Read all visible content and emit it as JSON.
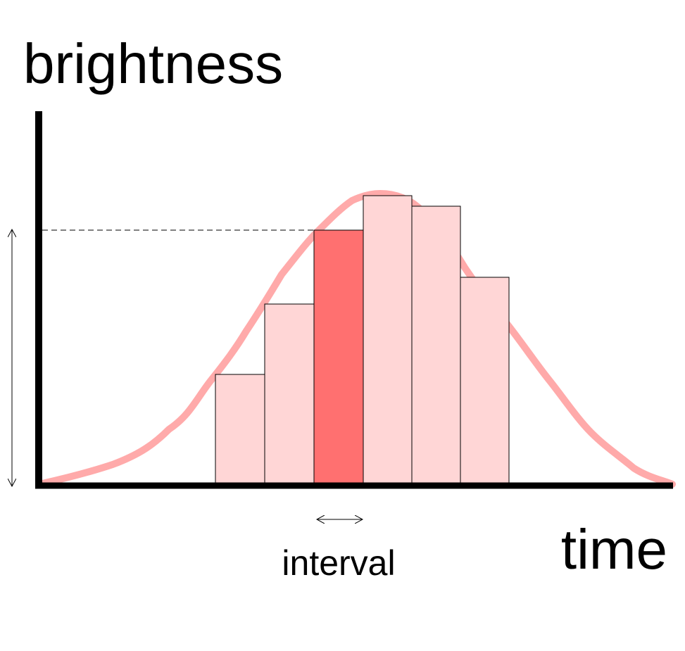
{
  "labels": {
    "y_axis": "brightness",
    "x_axis": "time",
    "interval": "interval"
  }
}
